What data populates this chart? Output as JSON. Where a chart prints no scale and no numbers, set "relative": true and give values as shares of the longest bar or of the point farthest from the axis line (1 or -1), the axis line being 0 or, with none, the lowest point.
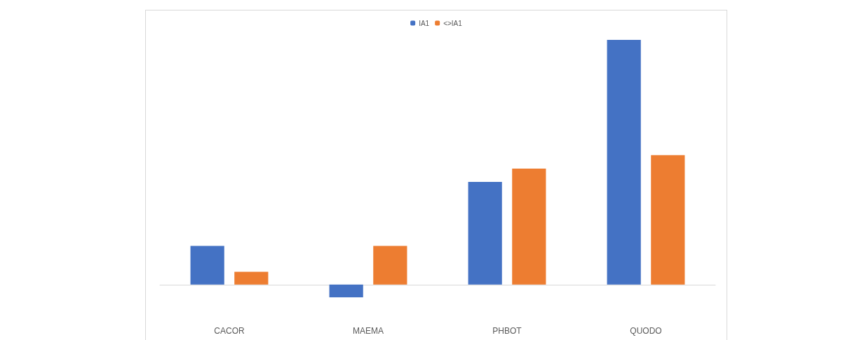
{
  "chart_data": {
    "type": "bar",
    "relative": true,
    "categories": [
      "CACOR",
      "MAEMA",
      "PHBOT",
      "QUODO"
    ],
    "series": [
      {
        "name": "IA1",
        "color": "#4472c4",
        "values": [
          0.158,
          -0.052,
          0.42,
          1
        ]
      },
      {
        "name": "<>IA1",
        "color": "#ed7d31",
        "values": [
          0.052,
          0.158,
          0.474,
          0.529
        ]
      }
    ],
    "legend": "top"
  }
}
